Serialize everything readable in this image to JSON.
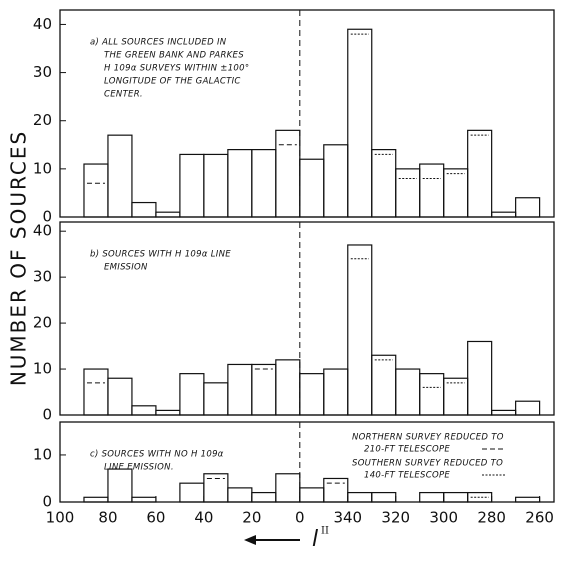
{
  "chart_data": [
    {
      "type": "histogram",
      "ylabel": "NUMBER OF SOURCES",
      "annotation": [
        "a) ALL SOURCES INCLUDED IN",
        "THE GREEN BANK AND PARKES",
        "H 109α SURVEYS WITHIN ±100°",
        "LONGITUDE OF THE GALACTIC",
        "CENTER."
      ],
      "bins": [
        90,
        80,
        70,
        60,
        50,
        40,
        30,
        20,
        10,
        0,
        -10,
        -20,
        -30,
        -40,
        -50,
        -60,
        -70,
        -80,
        -90,
        -100
      ],
      "values": [
        11,
        17,
        3,
        1,
        13,
        13,
        14,
        14,
        18,
        12,
        15,
        39,
        14,
        10,
        11,
        10,
        18,
        1,
        4
      ],
      "reduced": [
        {
          "style": "dashed",
          "values": [
            7,
            null,
            null,
            null,
            null,
            null,
            null,
            null,
            15,
            null,
            null,
            null,
            null,
            null,
            null,
            null,
            null,
            null,
            null
          ]
        },
        {
          "style": "dotted",
          "values": [
            null,
            null,
            null,
            null,
            null,
            null,
            null,
            null,
            null,
            null,
            null,
            38,
            13,
            8,
            8,
            9,
            17,
            null,
            null
          ]
        }
      ],
      "xlim": [
        100,
        -106
      ],
      "ylim": [
        0,
        43
      ],
      "yticks": [
        0,
        10,
        20,
        30,
        40
      ]
    },
    {
      "type": "histogram",
      "annotation": [
        "b) SOURCES WITH H 109α LINE",
        "EMISSION"
      ],
      "bins": [
        90,
        80,
        70,
        60,
        50,
        40,
        30,
        20,
        10,
        0,
        -10,
        -20,
        -30,
        -40,
        -50,
        -60,
        -70,
        -80,
        -90,
        -100
      ],
      "values": [
        10,
        8,
        2,
        1,
        9,
        7,
        11,
        11,
        12,
        9,
        10,
        37,
        13,
        10,
        9,
        8,
        16,
        1,
        3
      ],
      "reduced": [
        {
          "style": "dashed",
          "values": [
            7,
            null,
            null,
            null,
            null,
            null,
            null,
            10,
            null,
            null,
            null,
            null,
            null,
            null,
            null,
            null,
            null,
            null,
            null
          ]
        },
        {
          "style": "dotted",
          "values": [
            null,
            null,
            null,
            null,
            null,
            null,
            null,
            null,
            null,
            null,
            null,
            34,
            12,
            null,
            6,
            7,
            null,
            null,
            null
          ]
        }
      ],
      "xlim": [
        100,
        -106
      ],
      "ylim": [
        0,
        42
      ],
      "yticks": [
        0,
        10,
        20,
        30,
        40
      ]
    },
    {
      "type": "histogram",
      "annotation": [
        "c) SOURCES WITH NO H 109α",
        "LINE EMISSION."
      ],
      "bins": [
        90,
        80,
        70,
        60,
        50,
        40,
        30,
        20,
        10,
        0,
        -10,
        -20,
        -30,
        -40,
        -50,
        -60,
        -70,
        -80,
        -90,
        -100
      ],
      "values": [
        1,
        7,
        1,
        0,
        4,
        6,
        3,
        2,
        6,
        3,
        5,
        2,
        2,
        0,
        2,
        2,
        2,
        0,
        1
      ],
      "reduced": [
        {
          "style": "dashed",
          "values": [
            null,
            null,
            null,
            null,
            null,
            5,
            null,
            null,
            null,
            null,
            4,
            null,
            null,
            null,
            null,
            null,
            null,
            null,
            null
          ]
        },
        {
          "style": "dotted",
          "values": [
            null,
            null,
            null,
            null,
            null,
            null,
            null,
            null,
            null,
            null,
            null,
            null,
            null,
            null,
            null,
            null,
            1,
            null,
            null
          ]
        }
      ],
      "legend": [
        {
          "style": "dashed",
          "lines": [
            "NORTHERN SURVEY REDUCED TO",
            "210-FT TELESCOPE"
          ]
        },
        {
          "style": "dotted",
          "lines": [
            "SOUTHERN SURVEY REDUCED TO",
            "140-FT TELESCOPE"
          ]
        }
      ],
      "xlim": [
        100,
        -106
      ],
      "ylim": [
        0,
        17
      ],
      "yticks": [
        0,
        10
      ],
      "xticks": [
        100,
        80,
        60,
        40,
        20,
        0,
        {
          "value": -20,
          "label": "340"
        },
        {
          "value": -40,
          "label": "320"
        },
        {
          "value": -60,
          "label": "300"
        },
        {
          "value": -80,
          "label": "280"
        },
        {
          "value": -100,
          "label": "260"
        }
      ],
      "xlabel": "l",
      "xlabel_superscript": "II"
    }
  ]
}
